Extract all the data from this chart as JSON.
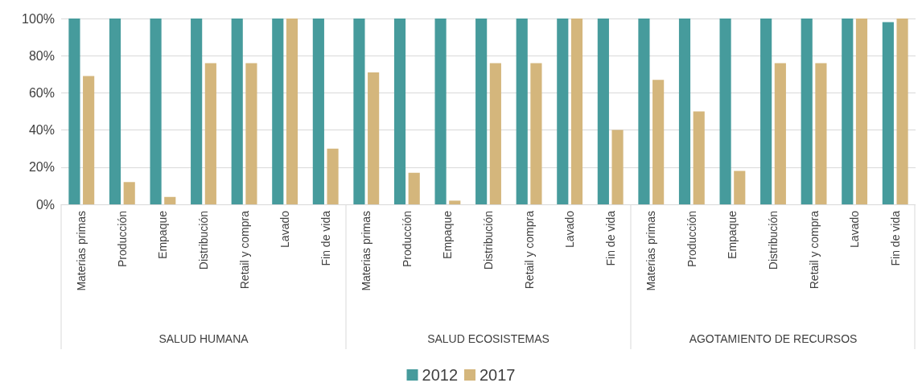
{
  "chart_data": {
    "type": "bar",
    "categories": [
      "Materias primas",
      "Producción",
      "Empaque",
      "Distribución",
      "Retail y compra",
      "Lavado",
      "Fin de vida",
      "Materias primas",
      "Producción",
      "Empaque",
      "Distribución",
      "Retail y compra",
      "Lavado",
      "Fin de vida",
      "Materias primas",
      "Producción",
      "Empaque",
      "Distribución",
      "Retail y compra",
      "Lavado",
      "Fin de vida"
    ],
    "series": [
      {
        "name": "2012",
        "color": "#469b9c",
        "values": [
          100,
          100,
          100,
          100,
          100,
          100,
          100,
          100,
          100,
          100,
          100,
          100,
          100,
          100,
          100,
          100,
          100,
          100,
          100,
          100,
          98
        ]
      },
      {
        "name": "2017",
        "color": "#d4b67c",
        "values": [
          69,
          12,
          4,
          76,
          76,
          100,
          30,
          71,
          17,
          2,
          76,
          76,
          100,
          40,
          67,
          50,
          18,
          76,
          76,
          100,
          100
        ]
      }
    ],
    "annotations": [
      "SALUD HUMANA",
      "SALUD ECOSISTEMAS",
      "AGOTAMIENTO DE RECURSOS"
    ],
    "ylim": [
      0,
      100
    ],
    "yticks": [
      {
        "value": 0,
        "label": "0%"
      },
      {
        "value": 20,
        "label": "20%"
      },
      {
        "value": 40,
        "label": "40%"
      },
      {
        "value": 60,
        "label": "60%"
      },
      {
        "value": 80,
        "label": "80%"
      },
      {
        "value": 100,
        "label": "100%"
      }
    ],
    "grid": "y",
    "legend": "bottom"
  }
}
